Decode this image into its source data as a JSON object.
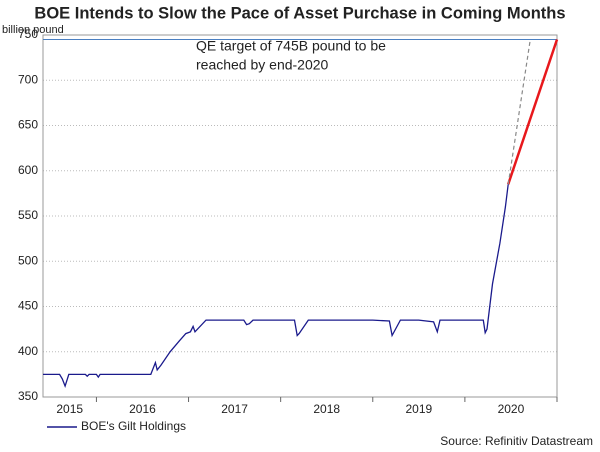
{
  "chart_data": {
    "type": "line",
    "title": "BOE Intends to Slow the Pace of Asset Purchase in Coming Months",
    "ylabel": "billion pound",
    "annotation": [
      "QE target of 745B pound to be",
      "reached by end-2020"
    ],
    "source": "Source: Refinitiv Datastream",
    "xlim": [
      2015.42,
      2021
    ],
    "xticks": [
      2015,
      2016,
      2017,
      2018,
      2019,
      2020
    ],
    "ylim": [
      350,
      750
    ],
    "yticks": [
      350,
      400,
      450,
      500,
      550,
      600,
      650,
      700,
      750
    ],
    "grid": true,
    "target": 745,
    "target_color": "#4a7fc1",
    "series": [
      {
        "name": "BOE's Gilt Holdings",
        "color": "#1a1a8c",
        "x": [
          2015.42,
          2015.6,
          2015.63,
          2015.66,
          2015.7,
          2015.8,
          2015.88,
          2015.9,
          2015.92,
          2016.0,
          2016.02,
          2016.04,
          2016.1,
          2016.3,
          2016.59,
          2016.64,
          2016.66,
          2016.7,
          2016.8,
          2016.9,
          2016.97,
          2017.02,
          2017.05,
          2017.07,
          2017.19,
          2017.6,
          2017.63,
          2017.66,
          2017.7,
          2018.15,
          2018.18,
          2018.2,
          2018.3,
          2019.0,
          2019.18,
          2019.21,
          2019.3,
          2019.5,
          2019.66,
          2019.7,
          2019.73,
          2019.76,
          2020.2,
          2020.22,
          2020.24,
          2020.3,
          2020.38,
          2020.44,
          2020.47
        ],
        "values": [
          375,
          375,
          370,
          362,
          375,
          375,
          375,
          373,
          375,
          375,
          372,
          375,
          375,
          375,
          375,
          388,
          380,
          385,
          400,
          412,
          420,
          422,
          428,
          422,
          435,
          435,
          430,
          431,
          435,
          435,
          418,
          420,
          435,
          435,
          434,
          418,
          435,
          435,
          433,
          422,
          435,
          435,
          435,
          421,
          425,
          475,
          520,
          560,
          585
        ]
      }
    ],
    "projections": [
      {
        "color": "#e8181c",
        "x": [
          2020.47,
          2021.0
        ],
        "values": [
          585,
          745
        ],
        "dashed": false
      },
      {
        "color": "#888888",
        "x": [
          2020.47,
          2020.71
        ],
        "values": [
          585,
          745
        ],
        "dashed": true
      }
    ]
  }
}
